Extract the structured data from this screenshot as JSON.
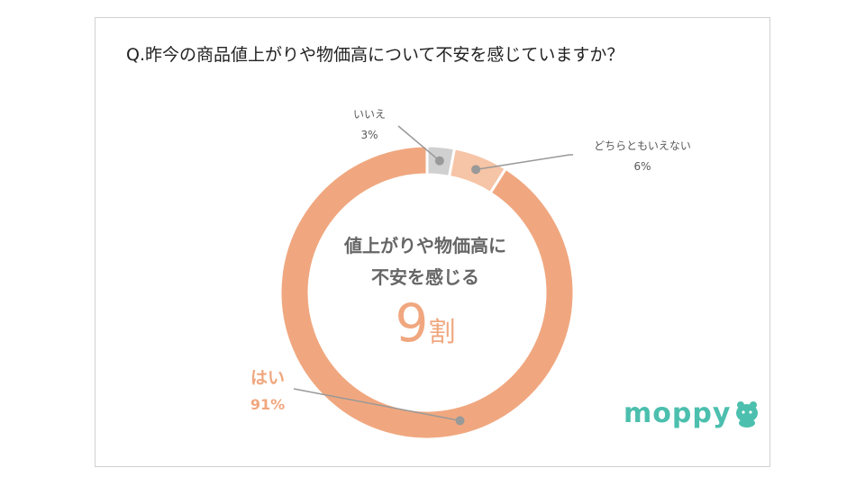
{
  "title": "Q.昨今の商品値上がりや物価高について不安を感じていますか？",
  "chart_data": {
    "type": "pie",
    "categories": [
      "はい",
      "いいえ",
      "どちらともいえない"
    ],
    "values": [
      91,
      3,
      6
    ],
    "value_labels": [
      "91%",
      "3%",
      "6%"
    ],
    "colors": [
      "#f0a77f",
      "#d0d0d0",
      "#f6c4a6"
    ],
    "center_text": [
      "値上がりや物価高に",
      "不安を感じる"
    ],
    "center_value": "9",
    "center_unit": "割"
  },
  "brand": {
    "logo_text": "moppy",
    "logo_color": "#4cbfae"
  }
}
